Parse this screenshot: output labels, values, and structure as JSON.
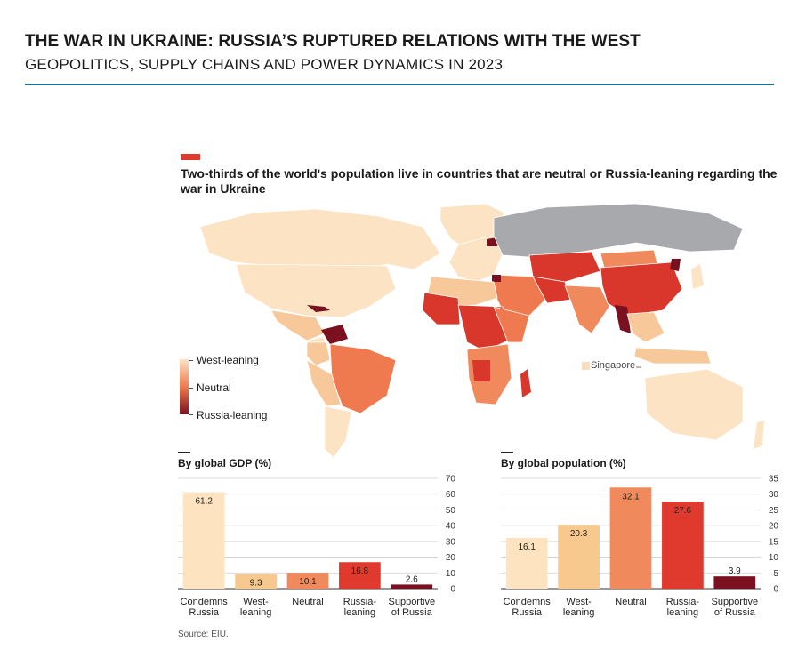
{
  "header": {
    "title": "THE WAR IN UKRAINE: RUSSIA’S RUPTURED RELATIONS WITH THE WEST",
    "subtitle": "GEOPOLITICS, SUPPLY CHAINS AND POWER DYNAMICS IN 2023"
  },
  "figure": {
    "title": "Two-thirds of the world's population live in countries that are neutral or Russia-leaning regarding the war in Ukraine",
    "accent_color": "#e03a2f"
  },
  "map": {
    "legend": {
      "top": "West-leaning",
      "middle": "Neutral",
      "bottom": "Russia-leaning"
    },
    "annotation": "Singapore",
    "colors": {
      "west": "#fbe3c3",
      "west2": "#f7c89a",
      "neutral": "#f08a5d",
      "neutral2": "#ef7a4f",
      "russia": "#d9372b",
      "russia_strong": "#7a1020",
      "russia_self": "#a7a9ac"
    }
  },
  "chart_data": [
    {
      "type": "bar",
      "title": "By global GDP (%)",
      "categories": [
        "Condemns\nRussia",
        "West-\nleaning",
        "Neutral",
        "Russia-\nleaning",
        "Supportive\nof Russia"
      ],
      "values": [
        61.2,
        9.3,
        10.1,
        16.8,
        2.6
      ],
      "colors": [
        "#fde3c0",
        "#f8c98f",
        "#f08a5d",
        "#e03a2f",
        "#7b1021"
      ],
      "ylim": [
        0,
        70
      ],
      "yticks": [
        0,
        10,
        20,
        30,
        40,
        50,
        60,
        70
      ],
      "grid": true,
      "axis_side": "right"
    },
    {
      "type": "bar",
      "title": "By global population (%)",
      "categories": [
        "Condemns\nRussia",
        "West-\nleaning",
        "Neutral",
        "Russia-\nleaning",
        "Supportive\nof Russia"
      ],
      "values": [
        16.1,
        20.3,
        32.1,
        27.6,
        3.9
      ],
      "colors": [
        "#fde3c0",
        "#f8c98f",
        "#f08a5d",
        "#e03a2f",
        "#7b1021"
      ],
      "ylim": [
        0,
        35
      ],
      "yticks": [
        0,
        5,
        10,
        15,
        20,
        25,
        30,
        35
      ],
      "grid": true,
      "axis_side": "right"
    }
  ],
  "source": "Source: EIU."
}
